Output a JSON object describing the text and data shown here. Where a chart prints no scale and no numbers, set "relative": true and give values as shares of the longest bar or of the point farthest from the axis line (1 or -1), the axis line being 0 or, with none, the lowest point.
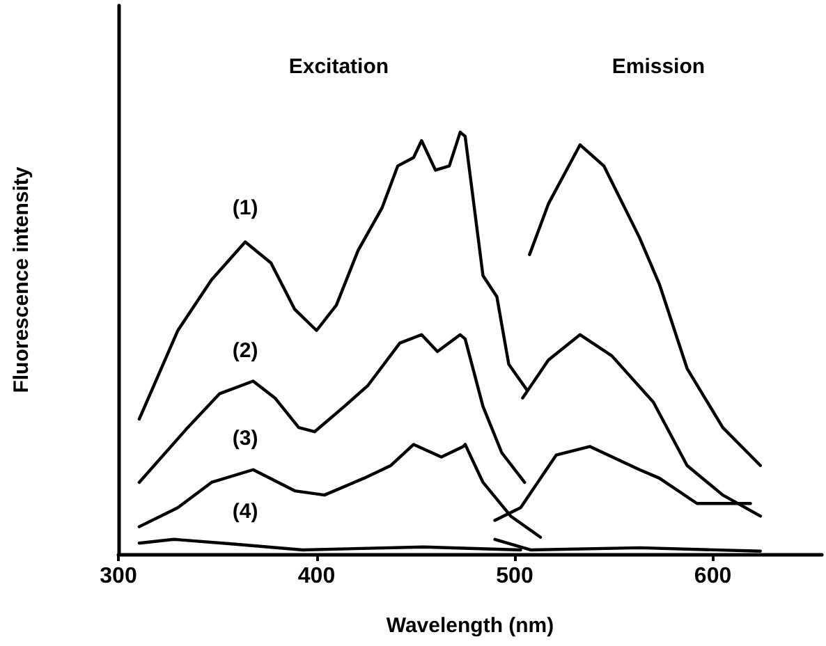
{
  "chart_data": {
    "type": "line",
    "relative": true,
    "xlabel": "Wavelength (nm)",
    "ylabel": "Fluorescence intensity",
    "xlim": [
      300,
      655
    ],
    "xticks": [
      300,
      400,
      500,
      600
    ],
    "grid": false,
    "marker": "none",
    "line_style": "solid",
    "annotations": [
      "Excitation",
      "Emission"
    ],
    "series": [
      {
        "name": "(1)",
        "color": "#000000",
        "x": [
          310.5,
          330,
          347,
          364,
          377,
          389,
          400,
          410,
          421,
          433,
          441,
          449,
          453,
          460,
          467,
          472.5,
          475,
          484,
          491,
          497,
          506
        ],
        "values": [
          0.32,
          0.53,
          0.65,
          0.74,
          0.69,
          0.58,
          0.53,
          0.59,
          0.72,
          0.82,
          0.92,
          0.94,
          0.98,
          0.91,
          0.92,
          1.0,
          0.99,
          0.66,
          0.61,
          0.45,
          0.39
        ]
      },
      {
        "color": "#000000",
        "x": [
          507.5,
          517,
          533,
          545,
          563,
          573,
          587,
          605,
          624
        ],
        "values": [
          0.71,
          0.83,
          0.97,
          0.92,
          0.75,
          0.64,
          0.44,
          0.3,
          0.21
        ]
      },
      {
        "name": "(2)",
        "color": "#000000",
        "x": [
          310.5,
          335,
          351,
          368,
          379,
          391,
          399,
          414,
          426,
          442,
          453,
          461,
          472.5,
          475,
          484,
          493.5,
          505
        ],
        "values": [
          0.17,
          0.3,
          0.38,
          0.41,
          0.37,
          0.3,
          0.29,
          0.35,
          0.4,
          0.5,
          0.52,
          0.48,
          0.52,
          0.51,
          0.35,
          0.24,
          0.17
        ]
      },
      {
        "color": "#000000",
        "x": [
          504,
          517,
          533,
          549,
          570,
          587,
          605,
          624
        ],
        "values": [
          0.37,
          0.46,
          0.52,
          0.47,
          0.36,
          0.21,
          0.14,
          0.09
        ]
      },
      {
        "name": "(3)",
        "color": "#000000",
        "x": [
          310.5,
          330,
          347,
          368,
          389,
          404,
          424,
          437.5,
          449,
          463,
          474,
          475,
          484,
          498,
          513
        ],
        "values": [
          0.065,
          0.11,
          0.17,
          0.2,
          0.15,
          0.14,
          0.18,
          0.21,
          0.26,
          0.23,
          0.255,
          0.26,
          0.17,
          0.09,
          0.04
        ]
      },
      {
        "color": "#000000",
        "x": [
          490,
          503,
          521,
          538,
          563,
          573,
          592,
          619
        ],
        "values": [
          0.08,
          0.11,
          0.235,
          0.255,
          0.2,
          0.18,
          0.12,
          0.12
        ]
      },
      {
        "name": "(4)",
        "color": "#000000",
        "x": [
          310.5,
          328,
          358,
          393,
          454,
          503
        ],
        "values": [
          0.026,
          0.035,
          0.024,
          0.01,
          0.017,
          0.01
        ]
      },
      {
        "color": "#000000",
        "x": [
          490,
          508,
          563,
          624
        ],
        "values": [
          0.035,
          0.01,
          0.015,
          0.007
        ]
      }
    ]
  }
}
